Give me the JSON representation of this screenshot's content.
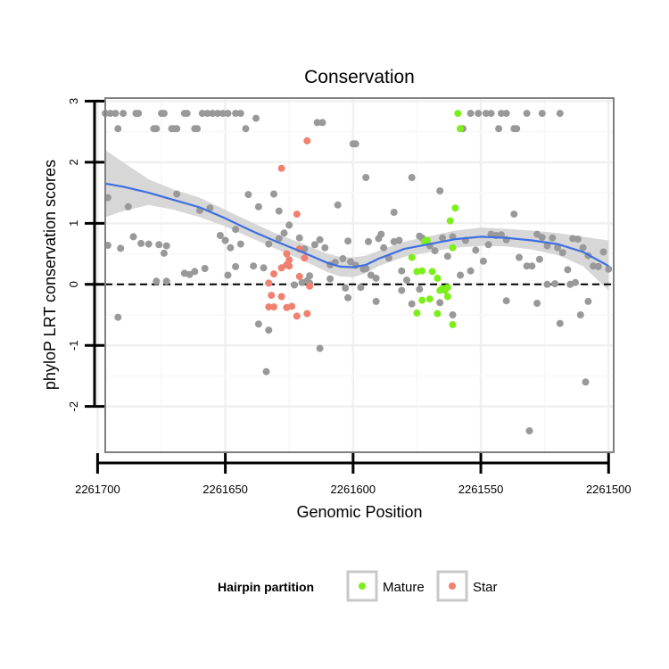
{
  "chart_data": {
    "type": "scatter",
    "title": "Conservation",
    "xlabel": "Genomic Position",
    "ylabel": "phyloP LRT conservation scores",
    "xlim": [
      2261697,
      2261498
    ],
    "x_reversed": true,
    "ylim": [
      -2.75,
      3.05
    ],
    "xticks": [
      2261700,
      2261650,
      2261600,
      2261550,
      2261500
    ],
    "xtick_labels": [
      "2261700",
      "2261650",
      "2261600",
      "2261550",
      "2261500"
    ],
    "yticks": [
      -2,
      -1,
      0,
      1,
      2,
      3
    ],
    "ytick_labels": [
      "-2",
      "-1",
      "0",
      "1",
      "2",
      "3"
    ],
    "grid": true,
    "reference_line": {
      "y": 0,
      "style": "dashed"
    },
    "legend": {
      "title": "Hairpin partition",
      "position": "bottom",
      "entries": [
        {
          "label": "Mature",
          "color": "#7CEF1A"
        },
        {
          "label": "Star",
          "color": "#F0806F"
        }
      ]
    },
    "colors": {
      "other": "#999999",
      "Mature": "#7CEF1A",
      "Star": "#F0806F",
      "smooth": "#3D6FE0",
      "band": "#D3D3D3"
    },
    "series": [
      {
        "name": "Other",
        "points": [
          [
            2261697,
            2.8
          ],
          [
            2261695,
            2.8
          ],
          [
            2261693,
            2.8
          ],
          [
            2261690,
            2.8
          ],
          [
            2261685,
            2.8
          ],
          [
            2261684,
            2.8
          ],
          [
            2261678,
            2.55
          ],
          [
            2261677,
            2.55
          ],
          [
            2261675,
            2.8
          ],
          [
            2261674,
            2.8
          ],
          [
            2261670,
            2.55
          ],
          [
            2261669,
            2.55
          ],
          [
            2261666,
            2.8
          ],
          [
            2261665,
            2.8
          ],
          [
            2261662,
            2.55
          ],
          [
            2261661,
            2.55
          ],
          [
            2261659,
            2.8
          ],
          [
            2261657,
            2.8
          ],
          [
            2261655,
            2.8
          ],
          [
            2261653,
            2.8
          ],
          [
            2261651,
            2.8
          ],
          [
            2261649,
            2.8
          ],
          [
            2261646,
            2.8
          ],
          [
            2261644,
            2.8
          ],
          [
            2261642,
            2.55
          ],
          [
            2261638,
            2.72
          ],
          [
            2261614,
            2.65
          ],
          [
            2261612,
            2.65
          ],
          [
            2261554,
            2.8
          ],
          [
            2261551,
            2.8
          ],
          [
            2261548,
            2.8
          ],
          [
            2261546,
            2.8
          ],
          [
            2261542,
            2.8
          ],
          [
            2261540,
            2.8
          ],
          [
            2261537,
            2.55
          ],
          [
            2261536,
            2.55
          ],
          [
            2261532,
            2.8
          ],
          [
            2261526,
            2.8
          ],
          [
            2261519,
            2.8
          ],
          [
            2261557,
            2.55
          ],
          [
            2261558,
            2.55
          ],
          [
            2261543,
            2.55
          ],
          [
            2261599,
            2.3
          ],
          [
            2261600,
            2.3
          ],
          [
            2261595,
            1.75
          ],
          [
            2261577,
            1.75
          ],
          [
            2261692,
            2.55
          ],
          [
            2261671,
            2.55
          ],
          [
            2261696,
            1.42
          ],
          [
            2261696,
            0.64
          ],
          [
            2261691,
            0.59
          ],
          [
            2261688,
            1.27
          ],
          [
            2261686,
            0.78
          ],
          [
            2261683,
            0.67
          ],
          [
            2261680,
            0.66
          ],
          [
            2261677,
            0.05
          ],
          [
            2261674,
            0.51
          ],
          [
            2261673,
            0.63
          ],
          [
            2261669,
            1.48
          ],
          [
            2261666,
            0.18
          ],
          [
            2261664,
            0.16
          ],
          [
            2261662,
            0.21
          ],
          [
            2261660,
            1.21
          ],
          [
            2261658,
            0.26
          ],
          [
            2261656,
            1.25
          ],
          [
            2261652,
            0.8
          ],
          [
            2261650,
            0.72
          ],
          [
            2261648,
            0.6
          ],
          [
            2261646,
            0.9
          ],
          [
            2261644,
            0.66
          ],
          [
            2261641,
            1.47
          ],
          [
            2261639,
            0.3
          ],
          [
            2261637,
            1.27
          ],
          [
            2261635,
            0.27
          ],
          [
            2261633,
            0.66
          ],
          [
            2261631,
            1.48
          ],
          [
            2261629,
            1.2
          ],
          [
            2261627,
            0.84
          ],
          [
            2261625,
            0.97
          ],
          [
            2261623,
            -0.01
          ],
          [
            2261621,
            0.76
          ],
          [
            2261619,
            0.58
          ],
          [
            2261617,
            0.14
          ],
          [
            2261615,
            0.65
          ],
          [
            2261613,
            0.73
          ],
          [
            2261611,
            0.6
          ],
          [
            2261609,
            0.09
          ],
          [
            2261606,
            1.3
          ],
          [
            2261604,
            0.42
          ],
          [
            2261602,
            0.71
          ],
          [
            2261601,
            0.37
          ],
          [
            2261599,
            0.31
          ],
          [
            2261597,
            -0.05
          ],
          [
            2261596,
            0.25
          ],
          [
            2261594,
            0.7
          ],
          [
            2261593,
            0.15
          ],
          [
            2261591,
            0.1
          ],
          [
            2261590,
            0.75
          ],
          [
            2261589,
            0.82
          ],
          [
            2261588,
            0.6
          ],
          [
            2261586,
            0.43
          ],
          [
            2261584,
            1.18
          ],
          [
            2261582,
            0.72
          ],
          [
            2261581,
            0.22
          ],
          [
            2261579,
            0.07
          ],
          [
            2261577,
            -0.32
          ],
          [
            2261574,
            0.79
          ],
          [
            2261573,
            0.76
          ],
          [
            2261570,
            0.63
          ],
          [
            2261568,
            0.55
          ],
          [
            2261566,
            1.53
          ],
          [
            2261565,
            0.76
          ],
          [
            2261563,
            0.46
          ],
          [
            2261561,
            0.78
          ],
          [
            2261558,
            0.15
          ],
          [
            2261556,
            0.72
          ],
          [
            2261554,
            0.22
          ],
          [
            2261552,
            0.56
          ],
          [
            2261549,
            0.38
          ],
          [
            2261547,
            0.65
          ],
          [
            2261546,
            0.82
          ],
          [
            2261544,
            0.8
          ],
          [
            2261542,
            0.81
          ],
          [
            2261540,
            0.73
          ],
          [
            2261537,
            1.15
          ],
          [
            2261535,
            0.44
          ],
          [
            2261532,
            0.3
          ],
          [
            2261530,
            0.3
          ],
          [
            2261528,
            0.82
          ],
          [
            2261526,
            0.77
          ],
          [
            2261524,
            0.63
          ],
          [
            2261522,
            0.76
          ],
          [
            2261520,
            0.6
          ],
          [
            2261518,
            0.52
          ],
          [
            2261516,
            0.24
          ],
          [
            2261514,
            0.75
          ],
          [
            2261512,
            0.74
          ],
          [
            2261510,
            0.6
          ],
          [
            2261508,
            0.47
          ],
          [
            2261506,
            0.3
          ],
          [
            2261504,
            0.29
          ],
          [
            2261502,
            0.53
          ],
          [
            2261500,
            0.25
          ],
          [
            2261574,
            -0.08
          ],
          [
            2261591,
            -0.28
          ],
          [
            2261595,
            0.26
          ],
          [
            2261581,
            -0.1
          ],
          [
            2261602,
            -0.22
          ],
          [
            2261584,
            0.7
          ],
          [
            2261609,
            0.32
          ],
          [
            2261618,
            0.06
          ],
          [
            2261617,
            0.02
          ],
          [
            2261649,
            0.15
          ],
          [
            2261673,
            0.05
          ],
          [
            2261692,
            -0.54
          ],
          [
            2261676,
            0.65
          ],
          [
            2261646,
            0.29
          ],
          [
            2261620,
            0.03
          ],
          [
            2261607,
            0.36
          ],
          [
            2261637,
            -0.65
          ],
          [
            2261633,
            -0.75
          ],
          [
            2261634,
            -1.43
          ],
          [
            2261613,
            -1.05
          ],
          [
            2261566,
            -0.3
          ],
          [
            2261561,
            -0.5
          ],
          [
            2261540,
            -0.27
          ],
          [
            2261528,
            -0.31
          ],
          [
            2261527,
            0.41
          ],
          [
            2261531,
            -2.4
          ],
          [
            2261524,
            0.0
          ],
          [
            2261521,
            0.01
          ],
          [
            2261515,
            0.0
          ],
          [
            2261513,
            0.03
          ],
          [
            2261508,
            -0.28
          ],
          [
            2261519,
            -0.64
          ],
          [
            2261511,
            -0.5
          ],
          [
            2261509,
            -1.6
          ],
          [
            2261603,
            -0.06
          ],
          [
            2261629,
            0.75
          ]
        ]
      },
      {
        "name": "Mature",
        "points": [
          [
            2261577,
            0.44
          ],
          [
            2261575,
            0.21
          ],
          [
            2261573,
            0.22
          ],
          [
            2261572,
            0.7
          ],
          [
            2261569,
            0.21
          ],
          [
            2261567,
            0.1
          ],
          [
            2261566,
            -0.1
          ],
          [
            2261565,
            -0.07
          ],
          [
            2261564,
            -0.1
          ],
          [
            2261563,
            -0.05
          ],
          [
            2261562,
            1.04
          ],
          [
            2261561,
            0.6
          ],
          [
            2261560,
            1.25
          ],
          [
            2261559,
            2.8
          ],
          [
            2261558,
            2.55
          ],
          [
            2261575,
            -0.47
          ],
          [
            2261573,
            -0.26
          ],
          [
            2261570,
            -0.24
          ],
          [
            2261567,
            -0.48
          ],
          [
            2261563,
            -0.2
          ],
          [
            2261561,
            -0.66
          ],
          [
            2261571,
            0.72
          ]
        ]
      },
      {
        "name": "Star",
        "points": [
          [
            2261628,
            1.9
          ],
          [
            2261618,
            2.35
          ],
          [
            2261622,
            1.15
          ],
          [
            2261621,
            0.58
          ],
          [
            2261619,
            0.43
          ],
          [
            2261625,
            0.4
          ],
          [
            2261626,
            0.32
          ],
          [
            2261625,
            0.3
          ],
          [
            2261631,
            0.17
          ],
          [
            2261633,
            0.02
          ],
          [
            2261628,
            0.27
          ],
          [
            2261632,
            -0.18
          ],
          [
            2261628,
            -0.2
          ],
          [
            2261633,
            -0.37
          ],
          [
            2261631,
            -0.37
          ],
          [
            2261626,
            -0.38
          ],
          [
            2261624,
            -0.36
          ],
          [
            2261622,
            -0.52
          ],
          [
            2261618,
            -0.48
          ],
          [
            2261617,
            -0.03
          ],
          [
            2261621,
            0.13
          ],
          [
            2261626,
            0.5
          ]
        ]
      }
    ],
    "smooth": {
      "label": "loess fit",
      "x": [
        2261697,
        2261690,
        2261680,
        2261670,
        2261660,
        2261650,
        2261640,
        2261630,
        2261620,
        2261610,
        2261605,
        2261600,
        2261595,
        2261590,
        2261580,
        2261570,
        2261560,
        2261550,
        2261540,
        2261530,
        2261520,
        2261510,
        2261500
      ],
      "y": [
        1.65,
        1.6,
        1.5,
        1.38,
        1.26,
        1.08,
        0.88,
        0.7,
        0.53,
        0.35,
        0.29,
        0.28,
        0.32,
        0.42,
        0.58,
        0.66,
        0.74,
        0.78,
        0.76,
        0.72,
        0.66,
        0.53,
        0.3
      ],
      "lower": [
        1.1,
        1.2,
        1.3,
        1.22,
        1.1,
        0.95,
        0.76,
        0.58,
        0.4,
        0.2,
        0.13,
        0.12,
        0.18,
        0.3,
        0.45,
        0.53,
        0.6,
        0.63,
        0.62,
        0.57,
        0.48,
        0.3,
        -0.1
      ],
      "upper": [
        2.2,
        2.0,
        1.72,
        1.55,
        1.42,
        1.22,
        1.02,
        0.83,
        0.67,
        0.5,
        0.45,
        0.44,
        0.47,
        0.55,
        0.7,
        0.79,
        0.88,
        0.93,
        0.91,
        0.88,
        0.84,
        0.78,
        0.72
      ]
    }
  }
}
